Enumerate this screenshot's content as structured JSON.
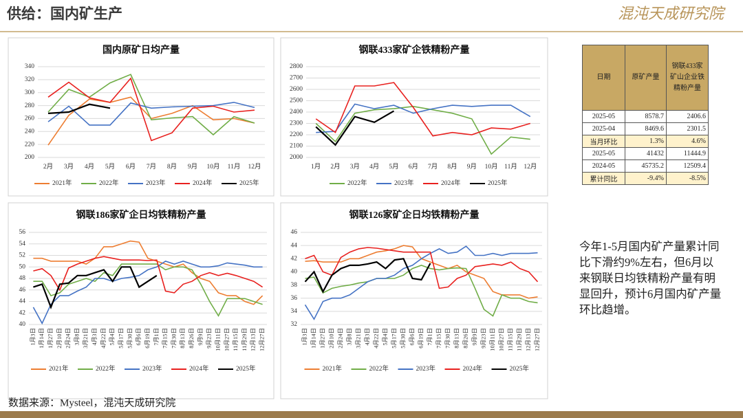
{
  "header": {
    "title": "供给：国内矿生产",
    "logo": "混沌天成研究院"
  },
  "chart_data": [
    {
      "type": "line",
      "title": "国内原矿日均产量",
      "categories": [
        "2月",
        "3月",
        "4月",
        "5月",
        "6月",
        "7月",
        "8月",
        "9月",
        "10月",
        "11月",
        "12月"
      ],
      "ylim": [
        200,
        340
      ],
      "yticks": [
        200,
        220,
        240,
        260,
        280,
        300,
        320,
        340
      ],
      "grid": true,
      "series": [
        {
          "name": "2021年",
          "color": "#ed7d31",
          "values": [
            219,
            265,
            290,
            285,
            293,
            260,
            268,
            280,
            258,
            260,
            253
          ]
        },
        {
          "name": "2022年",
          "color": "#70ad47",
          "values": [
            270,
            305,
            293,
            315,
            328,
            258,
            261,
            263,
            235,
            263,
            253
          ]
        },
        {
          "name": "2023年",
          "color": "#4472c4",
          "values": [
            255,
            279,
            250,
            250,
            284,
            276,
            278,
            279,
            280,
            285,
            277
          ]
        },
        {
          "name": "2024年",
          "color": "#e8201e",
          "values": [
            293,
            316,
            292,
            285,
            322,
            226,
            238,
            276,
            279,
            270,
            273
          ]
        },
        {
          "name": "2025年",
          "color": "#000000",
          "values": [
            268,
            270,
            282,
            276,
            null,
            null,
            null,
            null,
            null,
            null,
            null
          ]
        }
      ]
    },
    {
      "type": "line",
      "title": "钢联433家矿企铁精粉产量",
      "categories": [
        "1月",
        "2月",
        "3月",
        "4月",
        "5月",
        "6月",
        "7月",
        "8月",
        "9月",
        "10月",
        "11月",
        "12月"
      ],
      "ylim": [
        2000,
        2800
      ],
      "yticks": [
        2000,
        2100,
        2200,
        2300,
        2400,
        2500,
        2600,
        2700,
        2800
      ],
      "grid": true,
      "series": [
        {
          "name": "2022年",
          "color": "#70ad47",
          "values": [
            2300,
            2140,
            2390,
            2420,
            2430,
            2450,
            2420,
            2390,
            2340,
            2030,
            2180,
            2160
          ]
        },
        {
          "name": "2023年",
          "color": "#4472c4",
          "values": [
            2220,
            2230,
            2470,
            2430,
            2460,
            2390,
            2430,
            2460,
            2450,
            2460,
            2460,
            2360
          ]
        },
        {
          "name": "2024年",
          "color": "#e8201e",
          "values": [
            2340,
            2220,
            2630,
            2630,
            2660,
            2440,
            2190,
            2220,
            2200,
            2260,
            2250,
            2300
          ]
        },
        {
          "name": "2025年",
          "color": "#000000",
          "values": [
            2270,
            2110,
            2360,
            2310,
            2410,
            null,
            null,
            null,
            null,
            null,
            null,
            null
          ]
        }
      ]
    },
    {
      "type": "line",
      "title": "钢联186家矿企日均铁精粉产量",
      "categories": [
        "1月3日",
        "1月14日",
        "1月27日",
        "2月10日",
        "2月24日",
        "3月8日",
        "3月21日",
        "4月3日",
        "4月22日",
        "5月4日",
        "5月17日",
        "5月30日",
        "6月6日",
        "6月19日",
        "7月1日",
        "7月15日",
        "7月30日",
        "8月13日",
        "8月26日",
        "9月9日",
        "9月23日",
        "10月11日",
        "10月27日",
        "11月15日",
        "11月29日",
        "12月13日",
        "12月27日"
      ],
      "ylim": [
        40,
        56
      ],
      "yticks": [
        40,
        42,
        44,
        46,
        48,
        50,
        52,
        54,
        56
      ],
      "grid": true,
      "series": [
        {
          "name": "2021年",
          "color": "#ed7d31",
          "values": [
            51.5,
            51.5,
            51,
            51,
            51,
            51,
            50.5,
            51.5,
            53.5,
            53.5,
            54,
            54.5,
            54.3,
            51.5,
            51,
            50.5,
            50,
            50.5,
            49,
            48,
            47.5,
            45.5,
            45,
            45,
            44,
            43.5,
            45
          ]
        },
        {
          "name": "2022年",
          "color": "#70ad47",
          "values": [
            47.5,
            47.5,
            45,
            45.5,
            47,
            47.5,
            48,
            47.5,
            49,
            48.5,
            50.5,
            50.5,
            50.5,
            50.5,
            50.5,
            49.5,
            50,
            50,
            49.5,
            47,
            44,
            41.5,
            44.5,
            44.5,
            44.5,
            44,
            43.5
          ]
        },
        {
          "name": "2023年",
          "color": "#4472c4",
          "values": [
            43,
            40.2,
            43.5,
            45,
            45,
            45.8,
            46.5,
            48,
            48,
            47.5,
            48,
            48.2,
            48.5,
            49.5,
            50,
            51,
            50.5,
            51,
            50.5,
            50,
            50,
            50.2,
            50.7,
            50.5,
            50.3,
            50,
            50
          ]
        },
        {
          "name": "2024年",
          "color": "#e8201e",
          "values": [
            49.3,
            49.7,
            48.5,
            46,
            49.8,
            50.5,
            51,
            51.5,
            51.8,
            51.5,
            51.2,
            51.2,
            51.2,
            51.1,
            51.2,
            45.8,
            45.5,
            47,
            47.5,
            48.5,
            49,
            48.5,
            48.9,
            48.5,
            48,
            47.5,
            46.5
          ]
        },
        {
          "name": "2025年",
          "color": "#000000",
          "values": [
            46.5,
            47,
            43,
            47,
            47.2,
            48.5,
            48.5,
            49,
            49.5,
            47.5,
            50,
            50,
            46.5,
            47.5,
            48.5,
            null,
            null,
            null,
            null,
            null,
            null,
            null,
            null,
            null,
            null,
            null,
            null
          ]
        }
      ]
    },
    {
      "type": "line",
      "title": "钢联126家矿企日均铁精粉产量",
      "categories": [
        "1月3日",
        "1月14日",
        "1月27日",
        "2月10日",
        "2月24日",
        "3月8日",
        "3月21日",
        "4月3日",
        "4月22日",
        "5月4日",
        "5月17日",
        "5月30日",
        "6月6日",
        "6月19日",
        "7月1日",
        "7月15日",
        "7月30日",
        "8月13日",
        "8月26日",
        "9月9日",
        "9月23日",
        "10月11日",
        "10月27日",
        "11月15日",
        "11月29日",
        "12月13日",
        "12月27日"
      ],
      "ylim": [
        32,
        46
      ],
      "yticks": [
        32,
        34,
        36,
        38,
        40,
        42,
        44,
        46
      ],
      "grid": true,
      "series": [
        {
          "name": "2021年",
          "color": "#ed7d31",
          "values": [
            41.6,
            41.7,
            41.5,
            41.5,
            41.5,
            42,
            42,
            42.5,
            43,
            43.2,
            43.5,
            44,
            43.8,
            42,
            41.5,
            41,
            40.5,
            41,
            40,
            39.5,
            39,
            37,
            36.5,
            36.5,
            36.5,
            36,
            36.2
          ]
        },
        {
          "name": "2022年",
          "color": "#70ad47",
          "values": [
            39,
            39.2,
            36.8,
            37.5,
            37.8,
            38,
            38.3,
            38.5,
            39,
            39,
            39,
            39.5,
            40.5,
            41,
            40.5,
            40.3,
            40.5,
            40.6,
            40.5,
            37.5,
            34.3,
            33.3,
            36.5,
            36,
            36,
            35.5,
            35.3
          ]
        },
        {
          "name": "2023年",
          "color": "#4472c4",
          "values": [
            35,
            32.8,
            35.5,
            36,
            36,
            36.5,
            37.5,
            38.5,
            39,
            39,
            39.5,
            40.5,
            41,
            42,
            42.8,
            43.5,
            42.8,
            43,
            43.9,
            42.5,
            42.5,
            42.8,
            42.5,
            42.8,
            42.8,
            42.8,
            42.9
          ]
        },
        {
          "name": "2024年",
          "color": "#e8201e",
          "values": [
            42,
            42.5,
            40,
            39.5,
            42.2,
            43,
            43.5,
            43.7,
            43.6,
            43.4,
            43.2,
            43,
            43,
            43,
            43,
            37.5,
            37.7,
            39,
            39.5,
            40.8,
            41,
            41.2,
            41,
            41.5,
            40.5,
            40,
            38.5
          ]
        },
        {
          "name": "2025年",
          "color": "#000000",
          "values": [
            38.5,
            40,
            37,
            39.5,
            40.5,
            41,
            41,
            41.2,
            41.5,
            40.5,
            41.8,
            42,
            39,
            38.8,
            41.3,
            null,
            null,
            null,
            null,
            null,
            null,
            null,
            null,
            null,
            null,
            null,
            null
          ]
        }
      ]
    }
  ],
  "table": {
    "header": [
      "日期",
      "原矿产量",
      "钢联433家矿山企业铁精粉产量"
    ],
    "rows": [
      [
        "2025-05",
        "8578.7",
        "2406.6"
      ],
      [
        "2025-04",
        "8469.6",
        "2301.5"
      ],
      [
        "当月环比",
        "1.3%",
        "4.6%"
      ],
      [
        "2025-05",
        "41432",
        "11444.9"
      ],
      [
        "2024-05",
        "45735.2",
        "12509.4"
      ],
      [
        "累计同比",
        "-9.4%",
        "-8.5%"
      ]
    ]
  },
  "note": "今年1-5月国内矿产量累计同比下滑约9%左右，但6月以来钢联日均铁精粉产量有明显回升，预计6月国内矿产量环比趋增。",
  "source": "数据来源：Mysteel，混沌天成研究院"
}
